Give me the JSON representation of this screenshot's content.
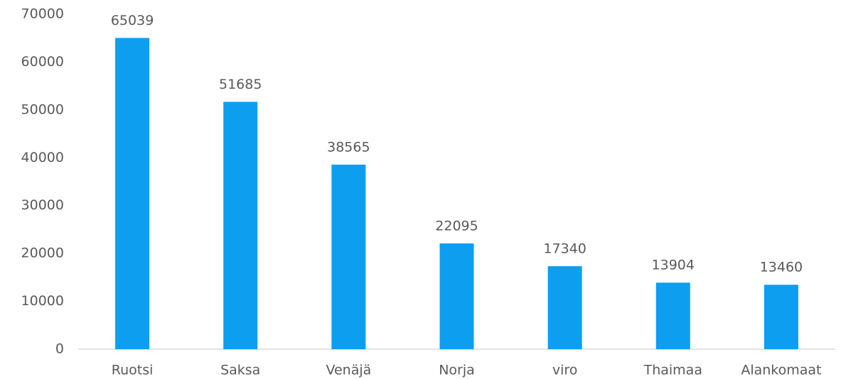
{
  "chart_data": {
    "type": "bar",
    "categories": [
      "Ruotsi",
      "Saksa",
      "Venäjä",
      "Norja",
      "viro",
      "Thaimaa",
      "Alankomaat"
    ],
    "values": [
      65039,
      51685,
      38565,
      22095,
      17340,
      13904,
      13460
    ],
    "color": "#0d9ef0",
    "ylim": [
      0,
      70000
    ],
    "yticks": [
      0,
      10000,
      20000,
      30000,
      40000,
      50000,
      60000,
      70000
    ],
    "grid": false
  }
}
